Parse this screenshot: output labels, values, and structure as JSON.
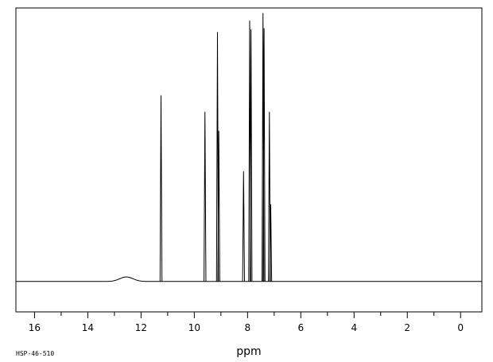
{
  "chart_data": {
    "type": "line",
    "title": "",
    "xlabel": "ppm",
    "ylabel": "",
    "xlim": [
      16.7,
      -0.8
    ],
    "x_reversed": true,
    "ylim": [
      -0.12,
      1.08
    ],
    "grid": false,
    "x_ticks": [
      16,
      14,
      12,
      10,
      8,
      6,
      4,
      2,
      0
    ],
    "x_tick_labels": [
      "16",
      "14",
      "12",
      "10",
      "8",
      "6",
      "4",
      "2",
      "0"
    ],
    "baseline": 0,
    "peaks": [
      {
        "ppm": 11.25,
        "height": 0.735
      },
      {
        "ppm": 9.6,
        "height": 0.67
      },
      {
        "ppm": 9.13,
        "height": 0.985
      },
      {
        "ppm": 9.08,
        "height": 0.595
      },
      {
        "ppm": 8.15,
        "height": 0.435
      },
      {
        "ppm": 7.92,
        "height": 1.03
      },
      {
        "ppm": 7.87,
        "height": 0.995
      },
      {
        "ppm": 7.42,
        "height": 1.06
      },
      {
        "ppm": 7.38,
        "height": 1.0
      },
      {
        "ppm": 7.18,
        "height": 0.67
      },
      {
        "ppm": 7.13,
        "height": 0.305
      }
    ],
    "broad_peaks": [
      {
        "ppm": 12.55,
        "height": 0.018,
        "width": 0.35
      }
    ],
    "footer_code": "HSP-46-510"
  }
}
